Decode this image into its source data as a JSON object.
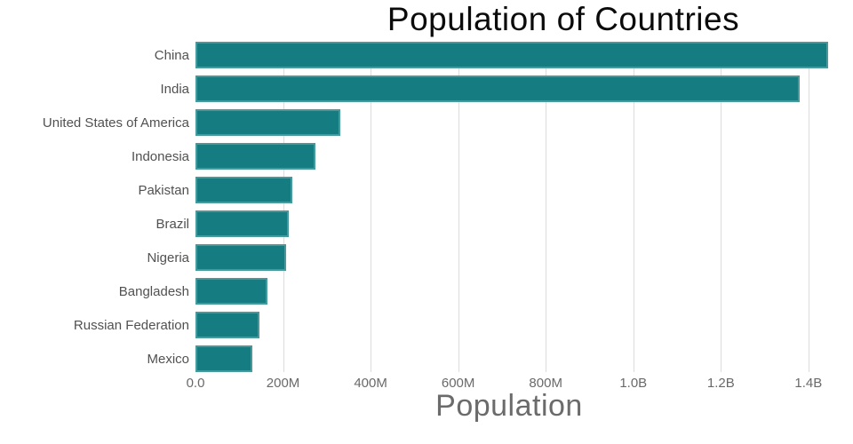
{
  "colors": {
    "bar": "#157D81",
    "gridline": "#dcdcdc",
    "title_text": "#0b0b0b",
    "category_label_text": "#515151",
    "tick_label_text": "#6a6a6a",
    "axis_title_text": "#6b6b6b",
    "background": "#ffffff"
  },
  "chart_data": {
    "type": "bar",
    "orientation": "horizontal",
    "title": "Population of Countries",
    "xlabel": "Population",
    "ylabel": "",
    "categories": [
      "China",
      "India",
      "United States of America",
      "Indonesia",
      "Pakistan",
      "Brazil",
      "Nigeria",
      "Bangladesh",
      "Russian Federation",
      "Mexico"
    ],
    "values_millions": [
      1444,
      1380,
      331,
      273.5,
      220.9,
      212.6,
      206.1,
      164.7,
      145.9,
      128.9
    ],
    "x_ticks": [
      {
        "label": "0.0",
        "value_millions": 0
      },
      {
        "label": "200M",
        "value_millions": 200
      },
      {
        "label": "400M",
        "value_millions": 400
      },
      {
        "label": "600M",
        "value_millions": 600
      },
      {
        "label": "800M",
        "value_millions": 800
      },
      {
        "label": "1.0B",
        "value_millions": 1000
      },
      {
        "label": "1.2B",
        "value_millions": 1200
      },
      {
        "label": "1.4B",
        "value_millions": 1400
      }
    ],
    "xlim_millions": [
      0,
      1449
    ],
    "grid": "vertical-only",
    "legend": "none",
    "bar_color": "#157D81"
  }
}
